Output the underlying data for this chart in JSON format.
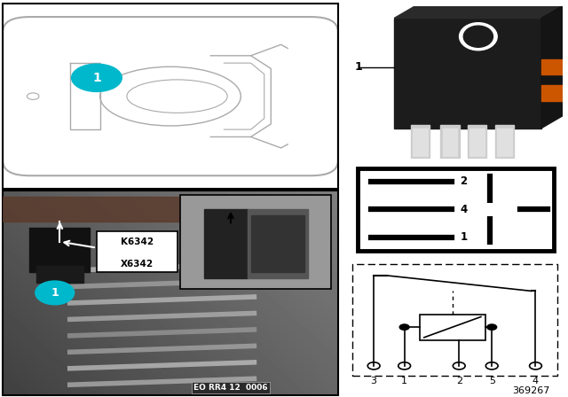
{
  "title": "369267",
  "bg_color": "#ffffff",
  "circle1_color": "#00b8cc",
  "circle1_label": "1",
  "label_K6342": "K6342",
  "label_X6342": "X6342",
  "relay_label": "1",
  "schematic_pins": [
    "3",
    "1",
    "2",
    "5",
    "4"
  ],
  "eo_label": "EO RR4 12  0006"
}
